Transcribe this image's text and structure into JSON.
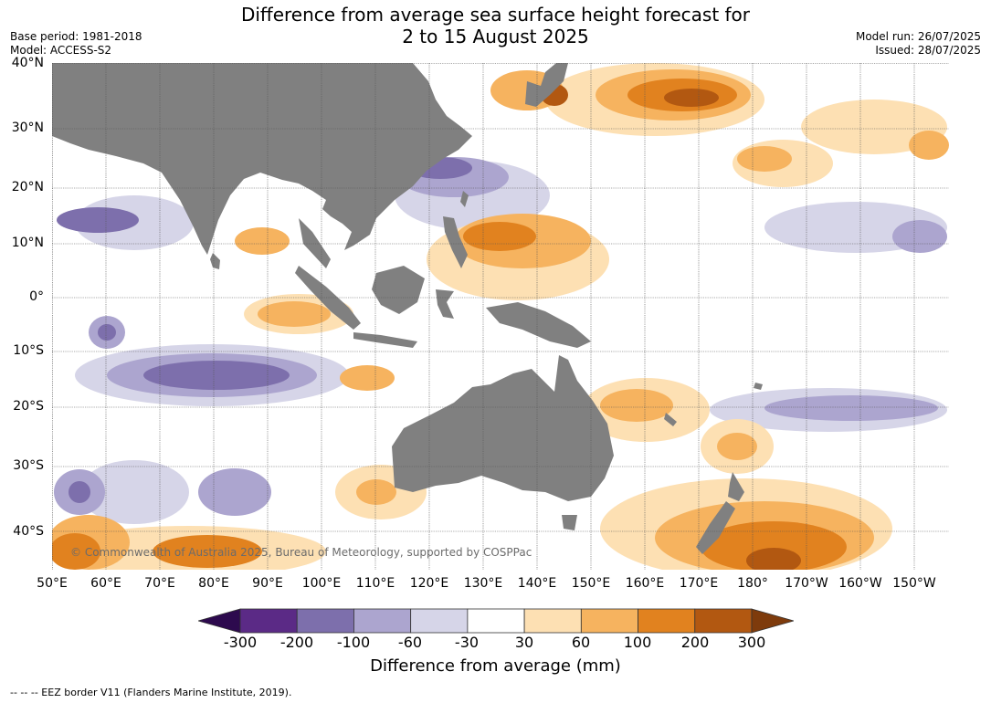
{
  "title_line1": "Difference from average sea surface height forecast for",
  "title_line2": "2 to 15 August 2025",
  "meta_left": {
    "base_period": "Base period: 1981-2018",
    "model": "Model: ACCESS-S2"
  },
  "meta_right": {
    "model_run": "Model run: 26/07/2025",
    "issued": "Issued: 28/07/2025"
  },
  "lat_labels": [
    "40°N",
    "30°N",
    "20°N",
    "10°N",
    "0°",
    "10°S",
    "20°S",
    "30°S",
    "40°S"
  ],
  "lon_labels": [
    "50°E",
    "60°E",
    "70°E",
    "80°E",
    "90°E",
    "100°E",
    "110°E",
    "120°E",
    "130°E",
    "140°E",
    "150°E",
    "160°E",
    "170°E",
    "180°",
    "170°W",
    "160°W",
    "150°W"
  ],
  "copyright": "© Commonwealth of Australia 2025, Bureau of Meteorology, supported by COSPPac",
  "colorbar": {
    "ticks": [
      "-300",
      "-200",
      "-100",
      "-60",
      "-30",
      "30",
      "60",
      "100",
      "200",
      "300"
    ],
    "colors": [
      "#2d0a4e",
      "#5b2a86",
      "#7d6fac",
      "#aca5cf",
      "#d6d5e8",
      "#ffffff",
      "#fde0b3",
      "#f6b35f",
      "#e1821f",
      "#b25811",
      "#7e3b0c"
    ],
    "title": "Difference from average (mm)"
  },
  "footnote": "--  --  -- EEZ border V11 (Flanders Marine Institute, 2019).",
  "colors": {
    "land": "#808080",
    "grid": "#555555"
  }
}
